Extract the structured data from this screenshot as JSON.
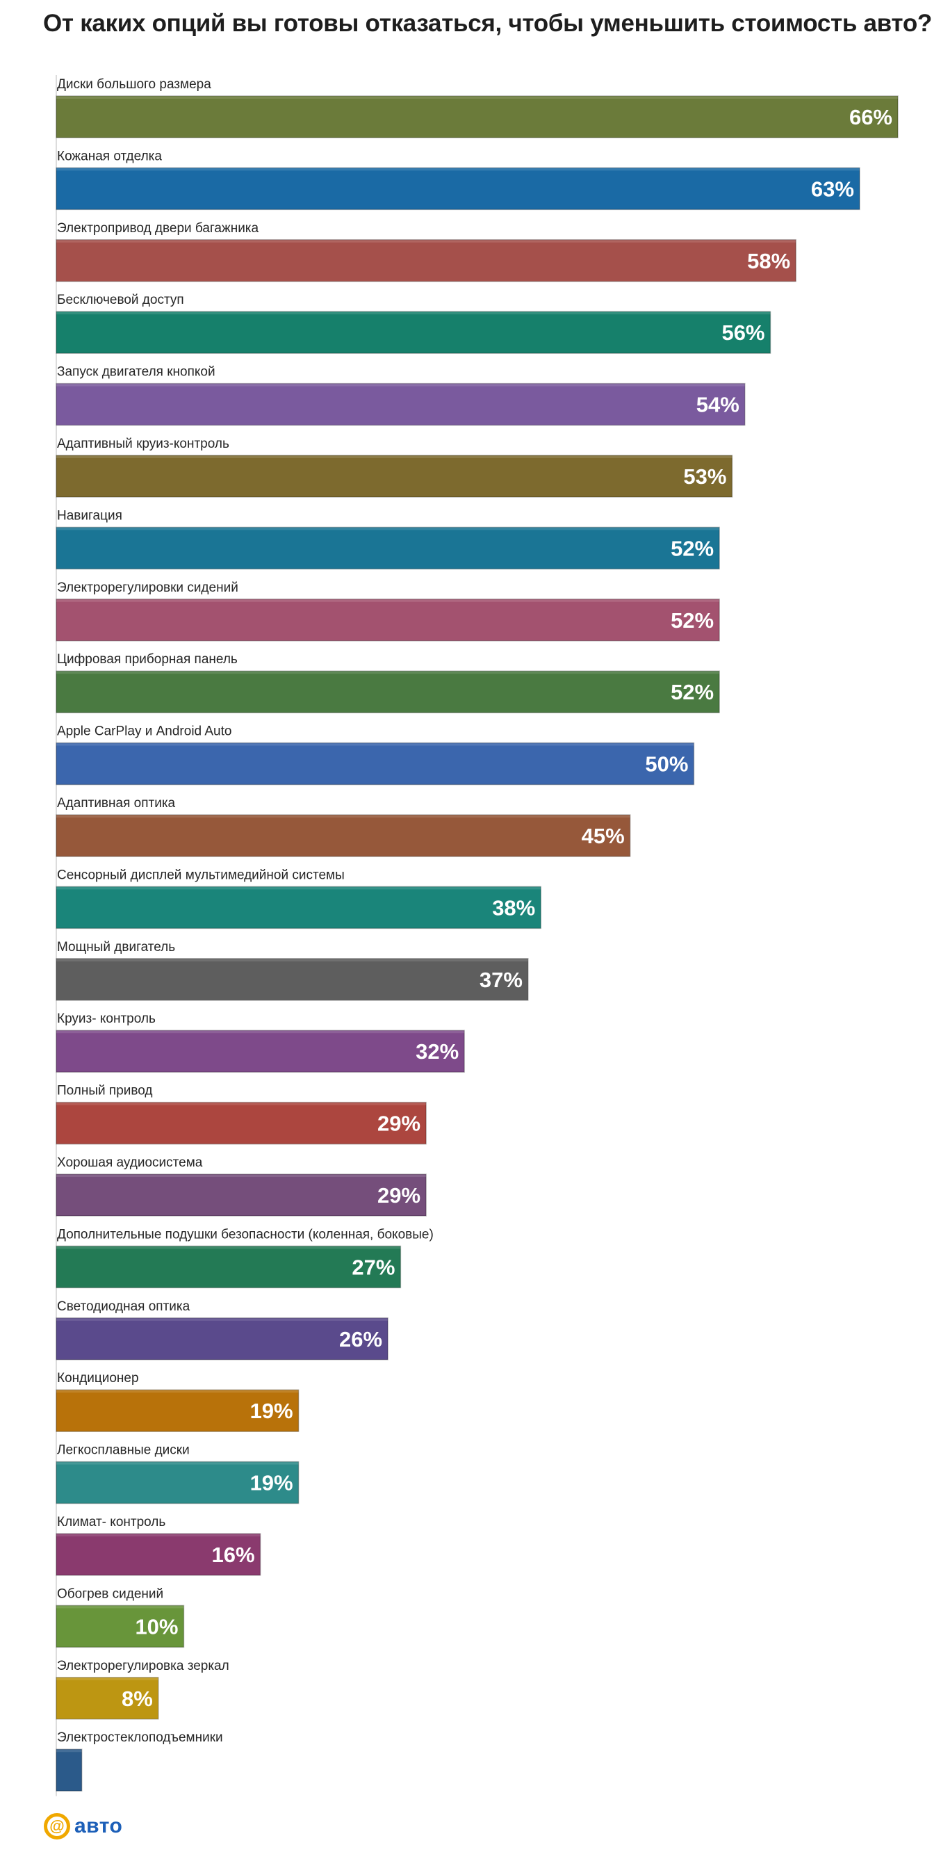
{
  "chart_data": {
    "type": "bar",
    "orientation": "horizontal",
    "title": "От каких опций вы готовы отказаться, чтобы уменьшить стоимость авто?",
    "xlim": [
      0,
      66
    ],
    "grid": false,
    "categories": [
      "Диски большого размера",
      "Кожаная отделка",
      "Электропривод двери багажника",
      "Бесключевой доступ",
      "Запуск двигателя кнопкой",
      "Адаптивный круиз-контроль",
      "Навигация",
      "Электрорегулировки сидений",
      "Цифровая приборная панель",
      "Apple CarPlay и Android Auto",
      "Адаптивная оптика",
      "Сенсорный дисплей мультимедийной системы",
      "Мощный двигатель",
      "Круиз- контроль",
      "Полный привод",
      "Хорошая аудиосистема",
      "Дополнительные подушки безопасности (коленная, боковые)",
      "Светодиодная оптика",
      "Кондиционер",
      "Легкосплавные диски",
      "Климат- контроль",
      "Обогрев сидений",
      "Электрорегулировка зеркал",
      "Электростеклоподъемники"
    ],
    "values": [
      66,
      63,
      58,
      56,
      54,
      53,
      52,
      52,
      52,
      50,
      45,
      38,
      37,
      32,
      29,
      29,
      27,
      26,
      19,
      19,
      16,
      10,
      8,
      2
    ],
    "data_labels": [
      "66%",
      "63%",
      "58%",
      "56%",
      "54%",
      "53%",
      "52%",
      "52%",
      "52%",
      "50%",
      "45%",
      "38%",
      "37%",
      "32%",
      "29%",
      "29%",
      "27%",
      "26%",
      "19%",
      "19%",
      "16%",
      "10%",
      "8%",
      ""
    ],
    "colors": [
      "#6b7b3a",
      "#1a6aa5",
      "#a5504b",
      "#16806b",
      "#7a5a9e",
      "#7d6a2e",
      "#1a7595",
      "#a3526f",
      "#4a7a41",
      "#3b66ad",
      "#96583a",
      "#1a857a",
      "#5e5e5e",
      "#7e4a8a",
      "#ac463f",
      "#754e7b",
      "#237a55",
      "#5a4a8c",
      "#b8720a",
      "#2d8b8a",
      "#8a3a6e",
      "#68953a",
      "#bd9612",
      "#2b5a8a"
    ]
  },
  "logo": {
    "symbol": "@",
    "text": "авто",
    "colors": {
      "symbol": "#f0a800",
      "text": "#1c5fb8"
    }
  }
}
